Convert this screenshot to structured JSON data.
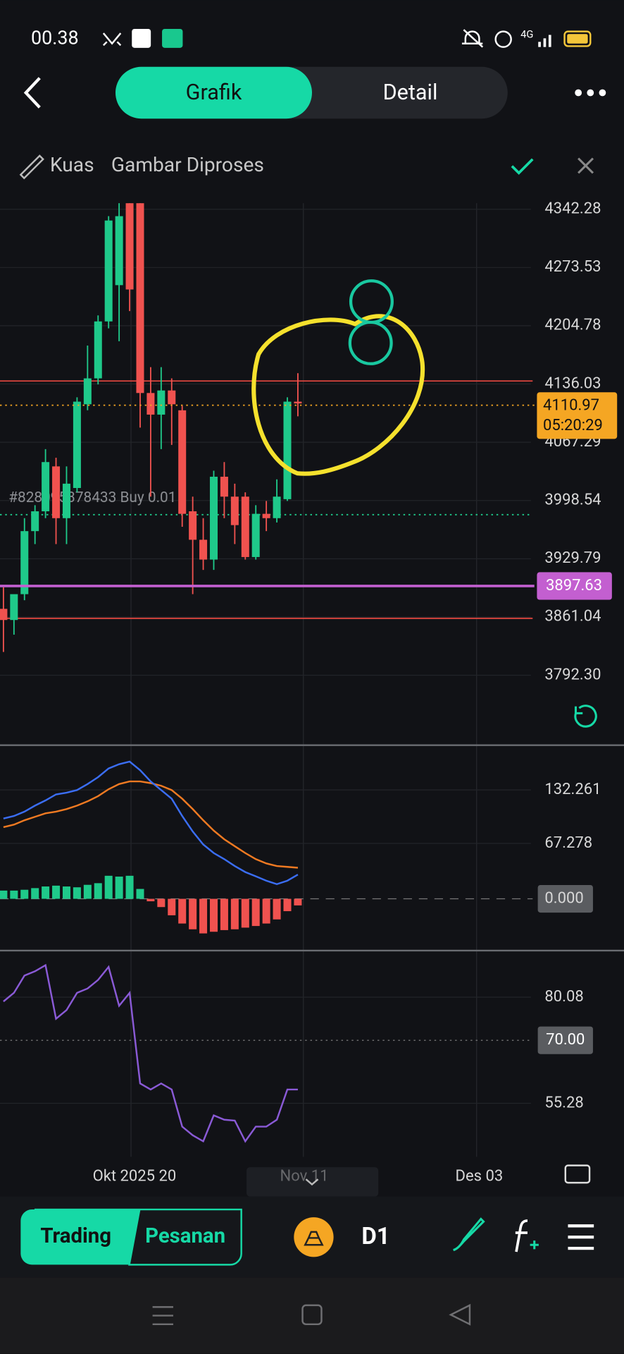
{
  "status_bar": {
    "time": "00.38",
    "network": "4G"
  },
  "tabs": [
    "Grafik",
    "Detail"
  ],
  "toolbar": {
    "brush": "Kuas",
    "status": "Gambar Diproses"
  },
  "price_chart": {
    "ylim": [
      3710.8,
      4349.4
    ],
    "yticks": [
      4342.28,
      4273.53,
      4204.78,
      4136.03,
      4067.29,
      3998.54,
      3929.79,
      3861.04,
      {
        "value": 3792.3,
        "label": "3792.30"
      }
    ],
    "current_price": 4110.97,
    "countdown": "05:20:29",
    "level": 3897.63,
    "red_lines": [
      4139.6,
      3859.5
    ],
    "order": {
      "label": "#828095378433 Buy 0.01",
      "value": 3981.8
    },
    "up_color": "#1fc98a",
    "down_color": "#f0524f",
    "open": [
      3870.7,
      3857.5,
      3888.0,
      3962.4,
      3985.8,
      4038.8,
      3977.7,
      4013.3,
      4112.1,
      4142.7,
      4209.9,
      4252.7,
      4349.4,
      4349.4,
      4125.4,
      4099.9,
      4128.4,
      4105.0,
      3985.8,
      3952.2,
      3928.8,
      4026.6,
      4003.1,
      4003.1,
      3931.8,
      3982.8,
      3977.7,
      4000.1,
      4115.2
    ],
    "high": [
      3896.2,
      3886.0,
      3977.7,
      3993.0,
      4059.2,
      4049.0,
      4038.8,
      4120.3,
      4181.4,
      4217.0,
      4334.1,
      4349.4,
      4349.4,
      4349.4,
      4155.9,
      4155.9,
      4142.7,
      4110.1,
      4003.1,
      3977.7,
      4033.7,
      4043.9,
      4018.4,
      4008.2,
      3993.0,
      3998.0,
      4023.5,
      4120.3,
      4148.8
    ],
    "low": [
      3819.8,
      3840.2,
      3880.9,
      3947.1,
      3977.7,
      3947.1,
      3947.1,
      4008.2,
      4105.0,
      4135.5,
      4201.7,
      4186.5,
      4222.1,
      4084.6,
      4003.1,
      4059.2,
      4064.2,
      3967.5,
      3888.0,
      3916.6,
      3916.6,
      3977.7,
      3947.1,
      3928.8,
      3928.8,
      3962.4,
      3972.6,
      3998.0,
      4097.9
    ],
    "close": [
      3857.5,
      3888.0,
      3962.4,
      3985.8,
      4043.9,
      3977.7,
      4018.4,
      4115.2,
      4142.7,
      4209.9,
      4329.0,
      4334.1,
      4247.6,
      4125.4,
      4099.9,
      4128.4,
      4112.1,
      3982.8,
      3952.2,
      3928.8,
      4026.6,
      4003.1,
      3969.5,
      3931.8,
      3982.8,
      3977.7,
      4003.1,
      4115.2,
      4113.1
    ]
  },
  "x_labels": [
    "Okt 2025 20",
    "Nov 11",
    "Des 03"
  ],
  "macd": {
    "ylim": [
      -61.8,
      184.5
    ],
    "yticks": [
      132.261,
      67.278,
      {
        "value": 0,
        "label": "0.000"
      }
    ],
    "macd_color": "#3b6ef5",
    "signal_color": "#f07a22",
    "macd": [
      97.5,
      100.6,
      105.9,
      113.2,
      119.5,
      126.8,
      128.9,
      132.1,
      139.4,
      147.8,
      158.3,
      163.5,
      166.7,
      156.2,
      142.6,
      132.1,
      121.6,
      100.6,
      81.8,
      66.0,
      55.6,
      48.2,
      39.8,
      32.5,
      27.3,
      22.0,
      17.8,
      22.0,
      29.4
    ],
    "signal": [
      87.0,
      90.1,
      95.4,
      99.6,
      103.8,
      105.9,
      109.0,
      113.2,
      118.4,
      124.7,
      133.1,
      139.4,
      142.6,
      142.6,
      140.5,
      137.3,
      132.1,
      121.6,
      109.0,
      95.4,
      82.8,
      72.3,
      63.9,
      55.6,
      48.2,
      43.0,
      39.8,
      38.8,
      37.7
    ],
    "histogram": [
      10,
      10,
      11,
      13,
      15,
      16,
      15,
      14,
      17,
      19,
      28,
      27,
      28,
      12,
      -3,
      -10,
      -20,
      -30,
      -37,
      -42,
      -40,
      -38,
      -37,
      -35,
      -33,
      -30,
      -25,
      -15,
      -8
    ]
  },
  "rsi": {
    "ylim": [
      42.78,
      90.56
    ],
    "yticks": [
      80.08,
      55.28
    ],
    "level": {
      "value": 70,
      "label": "70.00"
    },
    "color": "#8a5ad6",
    "values": [
      79.07,
      81.09,
      85.12,
      86.13,
      87.54,
      75.04,
      77.06,
      81.09,
      82.1,
      84.11,
      87.14,
      78.06,
      81.09,
      59.92,
      58.51,
      59.92,
      58.51,
      49.84,
      47.82,
      46.41,
      52.46,
      51.45,
      51.25,
      46.41,
      49.84,
      49.84,
      51.45,
      58.51,
      58.51
    ]
  },
  "bottom_bar": {
    "trading": "Trading",
    "orders": "Pesanan",
    "timeframe": "D1"
  }
}
